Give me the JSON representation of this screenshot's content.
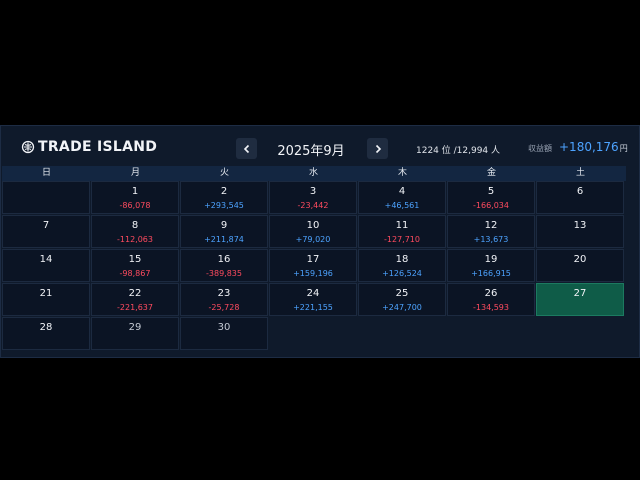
{
  "header": {
    "logo_text": "TRADE ISLAND",
    "month": "2025年9月",
    "rank": "1224 位 /12,994 人",
    "earnings_label": "収益額",
    "earnings_value": "+180,176",
    "earnings_unit": "円"
  },
  "weekdays": [
    "日",
    "月",
    "火",
    "水",
    "木",
    "金",
    "土"
  ],
  "colors": {
    "positive": "#4da3ff",
    "negative": "#ff4b5f",
    "today": "#0f5c48"
  },
  "days": [
    {
      "day": "1",
      "pl": "-86,078"
    },
    {
      "day": "2",
      "pl": "+293,545"
    },
    {
      "day": "3",
      "pl": "-23,442"
    },
    {
      "day": "4",
      "pl": "+46,561"
    },
    {
      "day": "5",
      "pl": "-166,034"
    },
    {
      "day": "6",
      "pl": ""
    },
    {
      "day": "7",
      "pl": ""
    },
    {
      "day": "8",
      "pl": "-112,063"
    },
    {
      "day": "9",
      "pl": "+211,874"
    },
    {
      "day": "10",
      "pl": "+79,020"
    },
    {
      "day": "11",
      "pl": "-127,710"
    },
    {
      "day": "12",
      "pl": "+13,673"
    },
    {
      "day": "13",
      "pl": ""
    },
    {
      "day": "14",
      "pl": ""
    },
    {
      "day": "15",
      "pl": "-98,867"
    },
    {
      "day": "16",
      "pl": "-389,835"
    },
    {
      "day": "17",
      "pl": "+159,196"
    },
    {
      "day": "18",
      "pl": "+126,524"
    },
    {
      "day": "19",
      "pl": "+166,915"
    },
    {
      "day": "20",
      "pl": ""
    },
    {
      "day": "21",
      "pl": ""
    },
    {
      "day": "22",
      "pl": "-221,637"
    },
    {
      "day": "23",
      "pl": "-25,728"
    },
    {
      "day": "24",
      "pl": "+221,155"
    },
    {
      "day": "25",
      "pl": "+247,700"
    },
    {
      "day": "26",
      "pl": "-134,593"
    },
    {
      "day": "27",
      "pl": "",
      "today": true
    },
    {
      "day": "28",
      "pl": ""
    },
    {
      "day": "29",
      "pl": "",
      "dim": true
    },
    {
      "day": "30",
      "pl": "",
      "dim": true
    }
  ]
}
